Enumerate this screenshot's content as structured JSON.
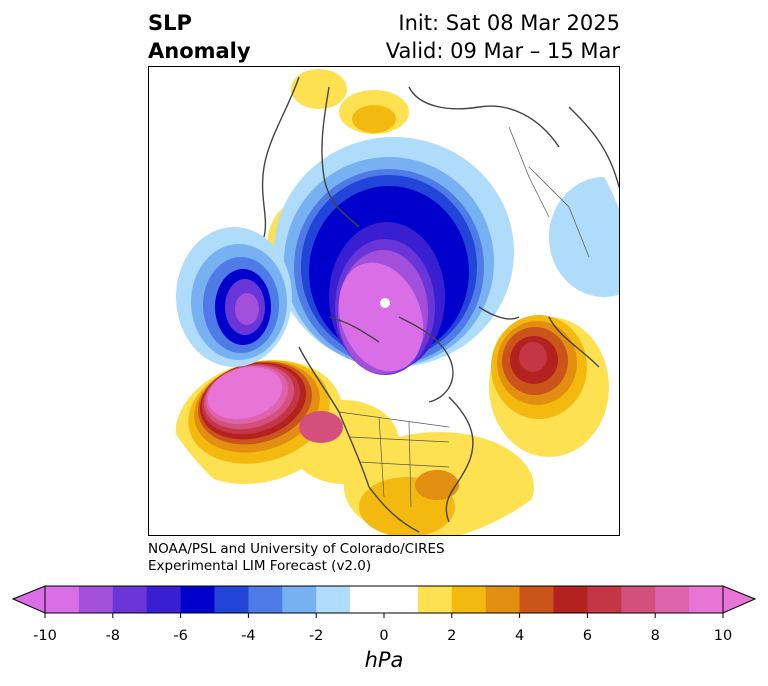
{
  "title": {
    "left_line1": "SLP",
    "left_line2": "Anomaly",
    "right_line1": "Init: Sat 08 Mar 2025",
    "right_line2": "Valid: 09 Mar – 15 Mar"
  },
  "credit": {
    "line1": "NOAA/PSL and University of Colorado/CIRES",
    "line2": "Experimental LIM Forecast (v2.0)"
  },
  "colorbar": {
    "units": "hPa",
    "ticks": [
      "-10",
      "-8",
      "-6",
      "-4",
      "-2",
      "0",
      "2",
      "4",
      "6",
      "8",
      "10"
    ],
    "colors": [
      "#d96ee6",
      "#a24fdc",
      "#6a35d8",
      "#3a1fd2",
      "#0000cd",
      "#2244d8",
      "#4e7be6",
      "#78b1f2",
      "#aedcfa",
      "#ffffff",
      "#ffffff",
      "#fde150",
      "#f3b90f",
      "#e28e10",
      "#ca5419",
      "#b3221f",
      "#c43545",
      "#d3507c",
      "#dd63ac",
      "#e874d6"
    ],
    "under_color": "#d96ee6",
    "over_color": "#e874d6"
  }
}
